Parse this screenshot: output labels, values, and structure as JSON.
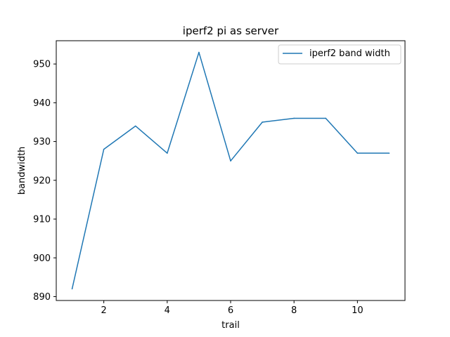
{
  "chart_data": {
    "type": "line",
    "title": "iperf2 pi as server",
    "xlabel": "trail",
    "ylabel": "bandwidth",
    "x": [
      1,
      2,
      3,
      4,
      5,
      6,
      7,
      8,
      9,
      10,
      11
    ],
    "series": [
      {
        "name": "iperf2 band width",
        "color": "#1f77b4",
        "values": [
          892,
          928,
          934,
          927,
          953,
          925,
          935,
          936,
          936,
          927,
          927
        ]
      }
    ],
    "xlim": [
      0.5,
      11.5
    ],
    "ylim": [
      889,
      956
    ],
    "xticks": [
      2,
      4,
      6,
      8,
      10
    ],
    "yticks": [
      890,
      900,
      910,
      920,
      930,
      940,
      950
    ],
    "grid": false,
    "legend_position": "top-right"
  }
}
